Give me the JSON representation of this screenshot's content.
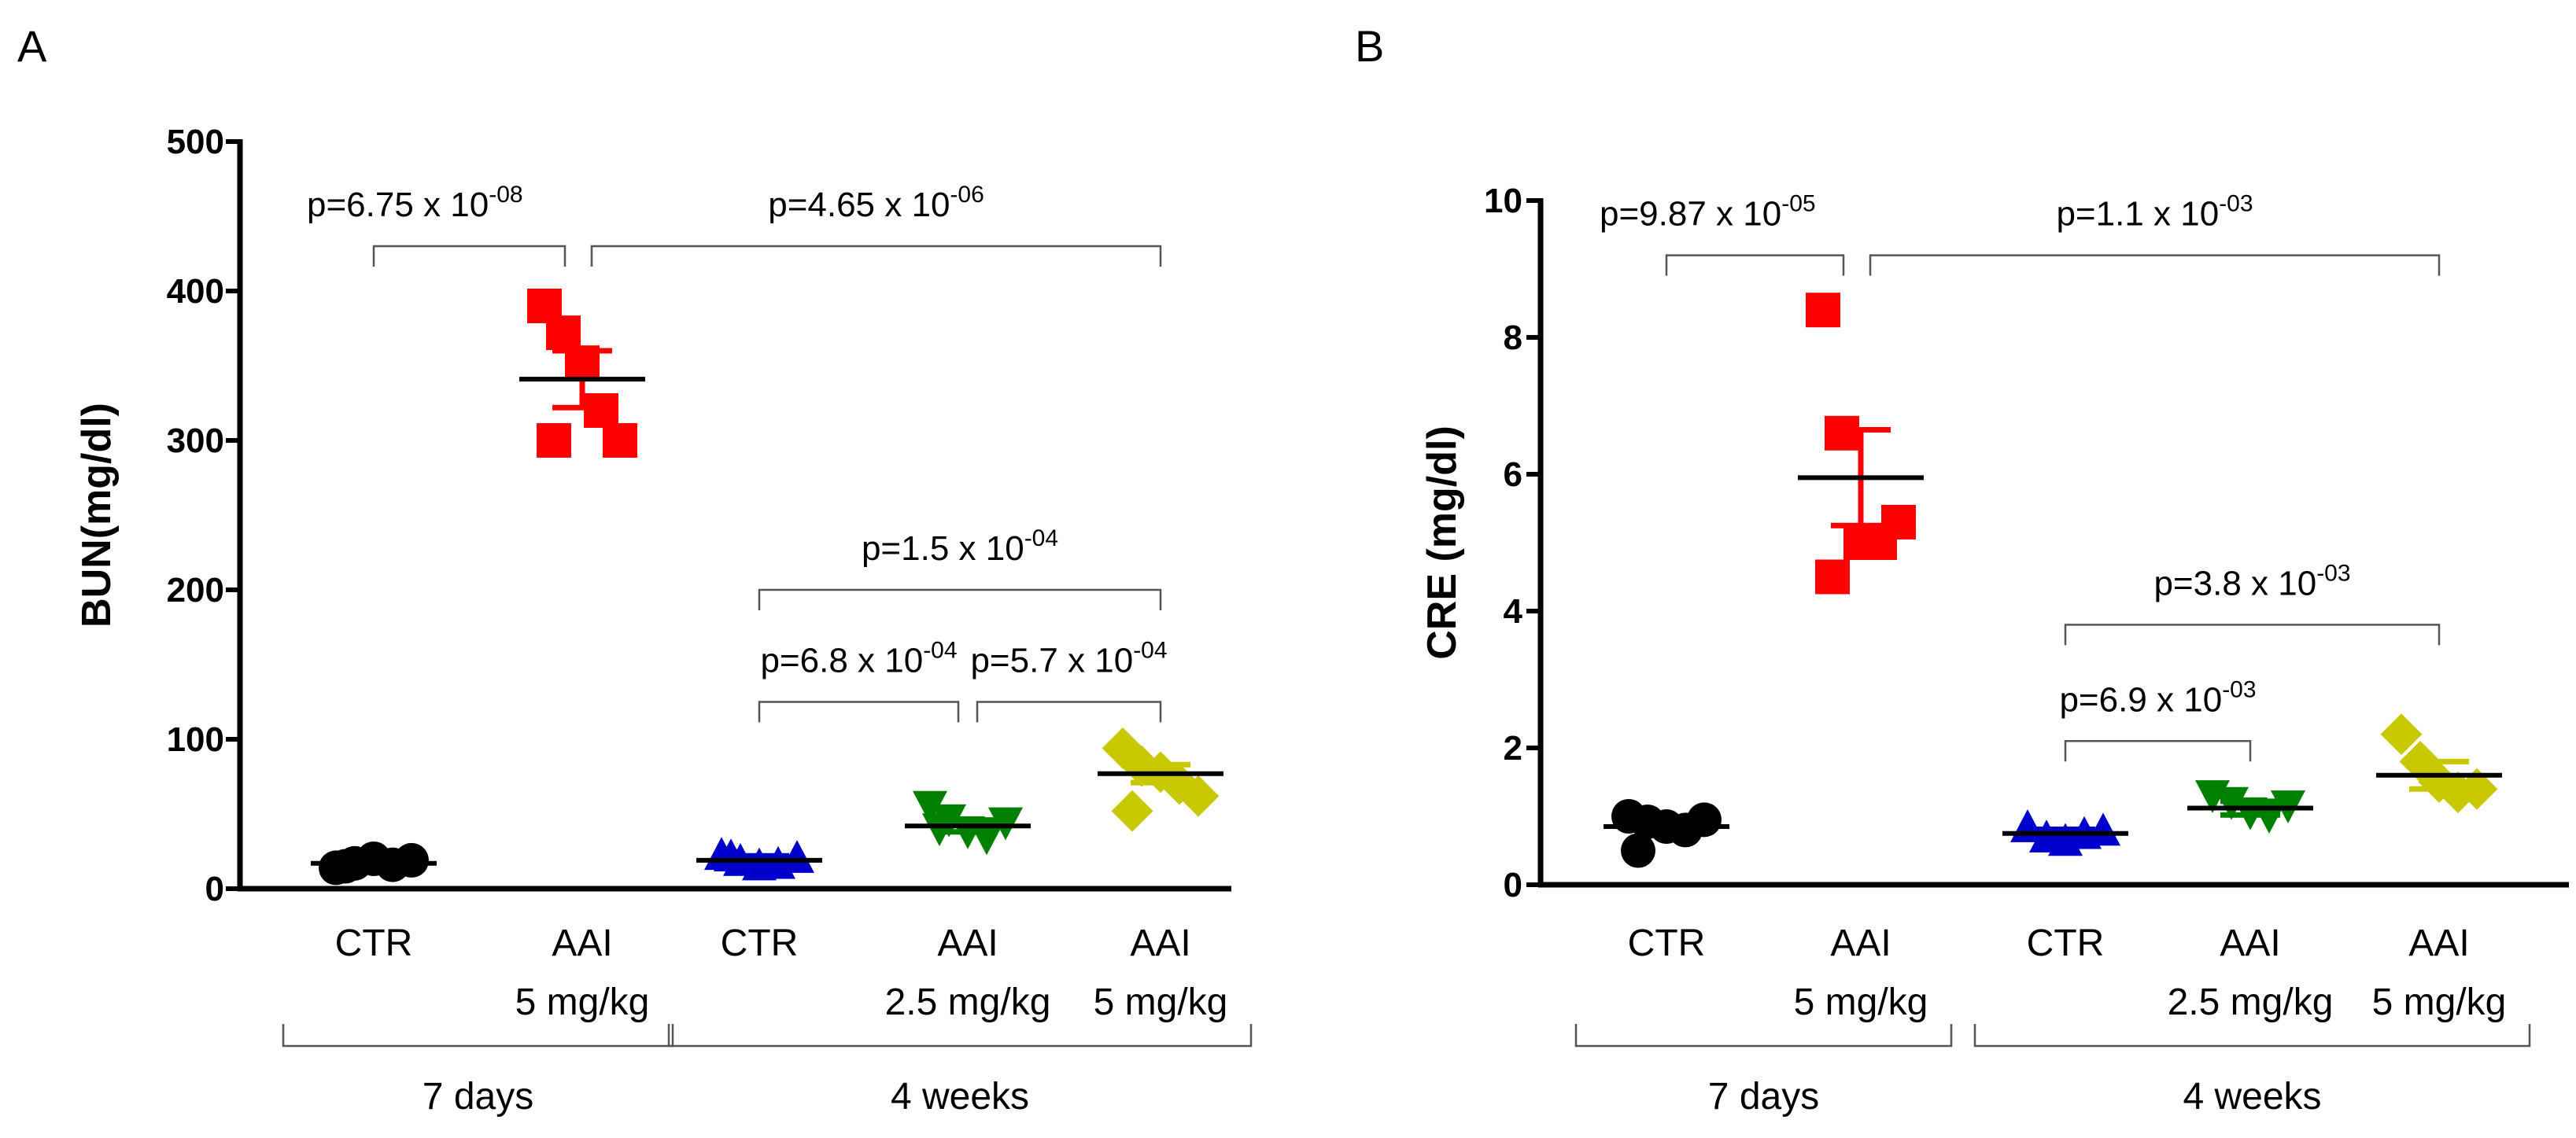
{
  "chart_data": [
    {
      "panel": "A",
      "type": "scatter",
      "ylabel": "BUN(mg/dl)",
      "ylim": [
        0,
        500
      ],
      "yticks": [
        0,
        100,
        200,
        300,
        400,
        500
      ],
      "groups": [
        {
          "line1": "CTR",
          "line2": "",
          "color": "#000000",
          "marker": "circle",
          "mean": 17,
          "sem": 2,
          "points": [
            14,
            17,
            20,
            16,
            19,
            15
          ]
        },
        {
          "line1": "AAI",
          "line2": "5 mg/kg",
          "color": "#ff0000",
          "marker": "square",
          "mean": 341,
          "sem": 19,
          "points": [
            390,
            372,
            352,
            320,
            300,
            300
          ]
        },
        {
          "line1": "CTR",
          "line2": "",
          "color": "#0000cc",
          "marker": "triangle-up",
          "mean": 19,
          "sem": 3,
          "points": [
            23,
            19,
            16,
            17,
            21,
            22
          ]
        },
        {
          "line1": "AAI",
          "line2": "2.5 mg/kg",
          "color": "#008000",
          "marker": "triangle-down",
          "mean": 42,
          "sem": 4,
          "points": [
            55,
            46,
            38,
            34,
            44,
            40
          ]
        },
        {
          "line1": "AAI",
          "line2": "5 mg/kg",
          "color": "#c8c800",
          "marker": "diamond",
          "mean": 77,
          "sem": 6,
          "points": [
            94,
            82,
            78,
            70,
            62,
            52
          ]
        }
      ],
      "group_labels": [
        {
          "label": "7 days",
          "from": 0,
          "to": 1
        },
        {
          "label": "4 weeks",
          "from": 2,
          "to": 4
        }
      ],
      "comparisons": [
        {
          "a": 0,
          "b": 1,
          "y": 430,
          "base": "p=6.75 x 10",
          "exp": "-08",
          "text_at": "left"
        },
        {
          "a": 1,
          "b": 4,
          "y": 430,
          "base": "p=4.65 x 10",
          "exp": "-06",
          "text_at": "center"
        },
        {
          "a": 2,
          "b": 4,
          "y": 200,
          "base": "p=1.5 x 10",
          "exp": "-04",
          "text_at": "center"
        },
        {
          "a": 2,
          "b": 3,
          "y": 125,
          "base": "p=6.8 x 10",
          "exp": "-04",
          "text_at": "center"
        },
        {
          "a": 3,
          "b": 4,
          "y": 125,
          "base": "p=5.7 x 10",
          "exp": "-04",
          "text_at": "center"
        }
      ]
    },
    {
      "panel": "B",
      "type": "scatter",
      "ylabel": "CRE (mg/dl)",
      "ylim": [
        0,
        10
      ],
      "yticks": [
        0,
        2,
        4,
        6,
        8,
        10
      ],
      "groups": [
        {
          "line1": "CTR",
          "line2": "",
          "color": "#000000",
          "marker": "circle",
          "mean": 0.85,
          "sem": 0.08,
          "points": [
            1.0,
            0.92,
            0.85,
            0.8,
            0.95,
            0.5
          ]
        },
        {
          "line1": "AAI",
          "line2": "5 mg/kg",
          "color": "#ff0000",
          "marker": "square",
          "mean": 5.95,
          "sem": 0.7,
          "points": [
            8.4,
            6.6,
            5.0,
            5.0,
            5.3,
            4.5
          ]
        },
        {
          "line1": "CTR",
          "line2": "",
          "color": "#0000cc",
          "marker": "triangle-up",
          "mean": 0.75,
          "sem": 0.06,
          "points": [
            0.85,
            0.7,
            0.65,
            0.75,
            0.8
          ]
        },
        {
          "line1": "AAI",
          "line2": "2.5 mg/kg",
          "color": "#008000",
          "marker": "triangle-down",
          "mean": 1.12,
          "sem": 0.1,
          "points": [
            1.3,
            1.2,
            1.05,
            1.0,
            1.15
          ]
        },
        {
          "line1": "AAI",
          "line2": "5 mg/kg",
          "color": "#c8c800",
          "marker": "diamond",
          "mean": 1.6,
          "sem": 0.2,
          "points": [
            2.2,
            1.8,
            1.5,
            1.35,
            1.4
          ]
        }
      ],
      "group_labels": [
        {
          "label": "7 days",
          "from": 0,
          "to": 1
        },
        {
          "label": "4 weeks",
          "from": 2,
          "to": 4
        }
      ],
      "comparisons": [
        {
          "a": 0,
          "b": 1,
          "y": 9.2,
          "base": "p=9.87 x 10",
          "exp": "-05",
          "text_at": "left"
        },
        {
          "a": 1,
          "b": 4,
          "y": 9.2,
          "base": "p=1.1 x 10",
          "exp": "-03",
          "text_at": "center"
        },
        {
          "a": 2,
          "b": 4,
          "y": 3.8,
          "base": "p=3.8 x 10",
          "exp": "-03",
          "text_at": "center"
        },
        {
          "a": 2,
          "b": 3,
          "y": 2.1,
          "base": "p=6.9 x 10",
          "exp": "-03",
          "text_at": "center"
        }
      ]
    }
  ]
}
